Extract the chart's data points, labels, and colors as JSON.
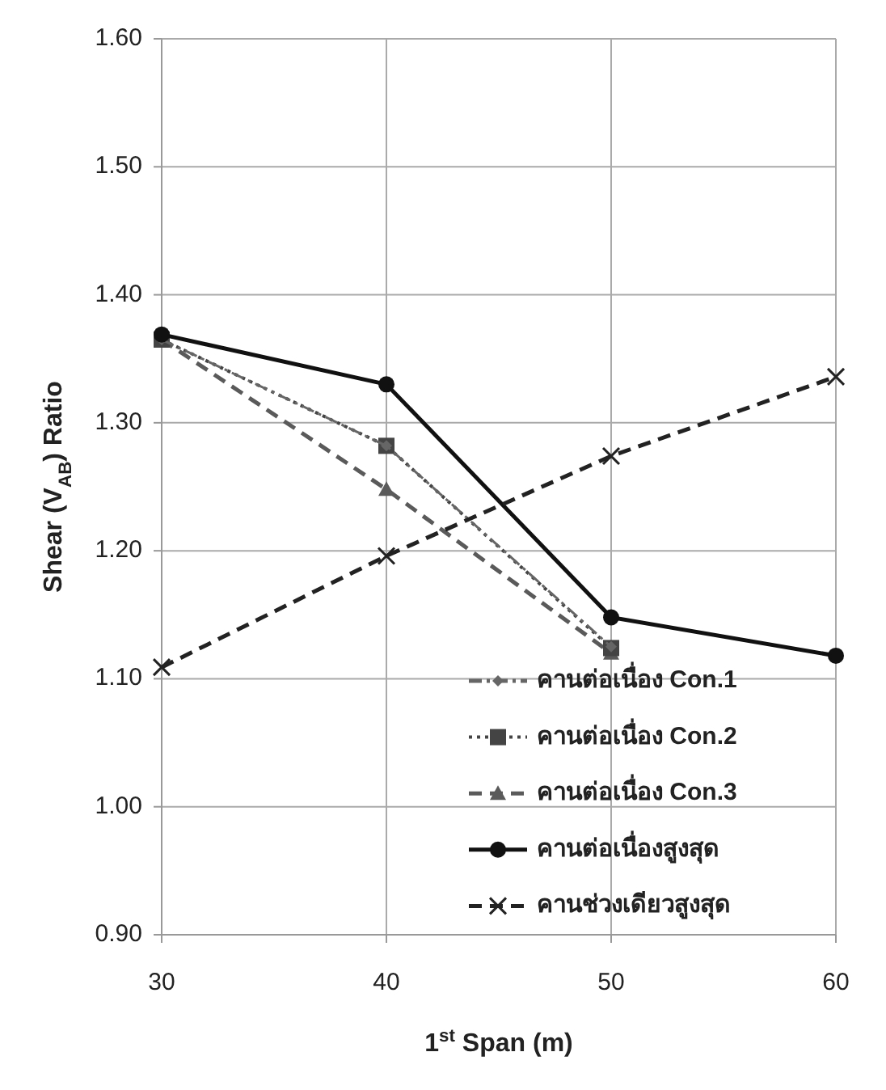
{
  "chart_data": {
    "type": "line",
    "xlabel": "1$^{st}$ Span (m)",
    "ylabel": "Shear (V$_{AB}$) Ratio",
    "x": [
      30,
      40,
      50,
      60
    ],
    "xlim": [
      30,
      60
    ],
    "xticks": [
      30,
      40,
      50,
      60
    ],
    "ylim": [
      0.9,
      1.6
    ],
    "yticks": [
      {
        "value": 0.9,
        "label": "0.90"
      },
      {
        "value": 1.0,
        "label": "1.00"
      },
      {
        "value": 1.1,
        "label": "1.10"
      },
      {
        "value": 1.2,
        "label": "1.20"
      },
      {
        "value": 1.3,
        "label": "1.30"
      },
      {
        "value": 1.4,
        "label": "1.40"
      },
      {
        "value": 1.5,
        "label": "1.50"
      },
      {
        "value": 1.6,
        "label": "1.60"
      }
    ],
    "grid": true,
    "legend": "bottom right",
    "series": [
      {
        "name": "คานต่อเนื่อง Con.1",
        "color": "#666666",
        "line_style": "dashdot",
        "marker": "diamond",
        "values": [
          1.365,
          1.282,
          1.125,
          null
        ]
      },
      {
        "name": "คานต่อเนื่อง Con.2",
        "color": "#444444",
        "line_style": "dotted",
        "marker": "square",
        "values": [
          1.365,
          1.282,
          1.124,
          null
        ]
      },
      {
        "name": "คานต่อเนื่อง Con.3",
        "color": "#5a5a5a",
        "line_style": "dashed",
        "marker": "triangle",
        "values": [
          1.365,
          1.248,
          1.12,
          null
        ]
      },
      {
        "name": "คานต่อเนื่องสูงสุด",
        "color": "#111111",
        "line_style": "solid",
        "marker": "circle",
        "values": [
          1.369,
          1.33,
          1.148,
          1.118
        ]
      },
      {
        "name": "คานช่วงเดียวสูงสุด",
        "color": "#222222",
        "line_style": "dashed",
        "marker": "cross",
        "values": [
          1.109,
          1.196,
          1.274,
          1.336
        ]
      }
    ]
  }
}
